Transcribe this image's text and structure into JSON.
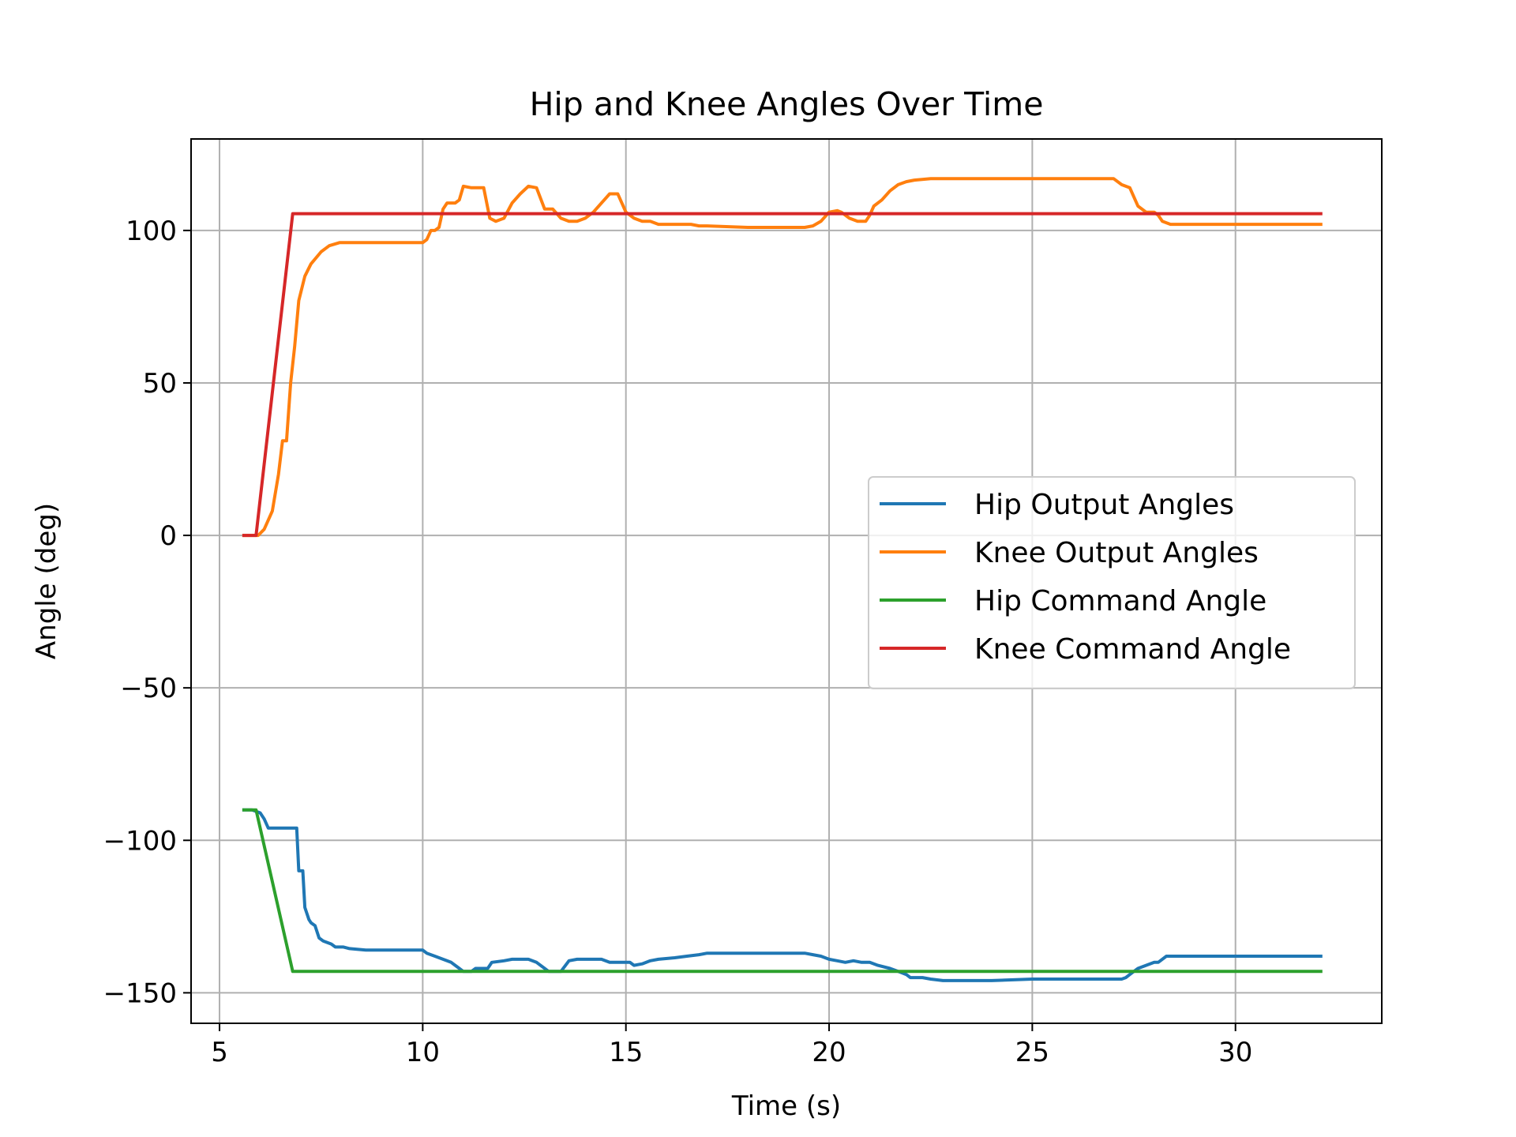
{
  "chart_data": {
    "type": "line",
    "title": "Hip and Knee Angles Over Time",
    "xlabel": "Time (s)",
    "ylabel": "Angle (deg)",
    "xlim": [
      4.3,
      33.6
    ],
    "ylim": [
      -160,
      130
    ],
    "xticks": [
      5,
      10,
      15,
      20,
      25,
      30
    ],
    "yticks": [
      -150,
      -100,
      -50,
      0,
      50,
      100
    ],
    "xtick_labels": [
      "5",
      "10",
      "15",
      "20",
      "25",
      "30"
    ],
    "ytick_labels": [
      "−150",
      "−100",
      "−50",
      "0",
      "50",
      "100"
    ],
    "grid": true,
    "legend_position": "center-right",
    "series": [
      {
        "name": "Hip Output Angles",
        "color": "#1f77b4",
        "x": [
          5.6,
          5.8,
          6.0,
          6.1,
          6.2,
          6.4,
          6.5,
          6.7,
          6.9,
          6.95,
          7.05,
          7.1,
          7.2,
          7.25,
          7.35,
          7.45,
          7.55,
          7.75,
          7.85,
          8.05,
          8.2,
          8.6,
          9.0,
          9.5,
          10.0,
          10.1,
          10.3,
          10.5,
          10.7,
          10.8,
          10.9,
          11.0,
          11.2,
          11.3,
          11.5,
          11.6,
          11.7,
          12.0,
          12.2,
          12.5,
          12.6,
          12.8,
          13.0,
          13.1,
          13.2,
          13.3,
          13.4,
          13.6,
          13.8,
          14.0,
          14.2,
          14.4,
          14.6,
          14.8,
          15.0,
          15.1,
          15.2,
          15.4,
          15.6,
          15.8,
          16.2,
          16.5,
          16.8,
          17.0,
          18.0,
          19.0,
          19.4,
          19.6,
          19.8,
          20.0,
          20.2,
          20.4,
          20.6,
          20.8,
          21.0,
          21.2,
          21.5,
          21.7,
          21.9,
          22.0,
          22.1,
          22.3,
          22.5,
          22.8,
          23.0,
          24.0,
          25.0,
          26.0,
          27.0,
          27.2,
          27.3,
          27.4,
          27.5,
          27.6,
          27.8,
          28.0,
          28.1,
          28.3,
          29.0,
          30.0,
          31.0,
          32.1
        ],
        "values": [
          -90,
          -90,
          -91,
          -93,
          -96,
          -96,
          -96,
          -96,
          -96,
          -110,
          -110,
          -122,
          -126,
          -127,
          -128,
          -132,
          -133,
          -134,
          -135,
          -135,
          -135.5,
          -136,
          -136,
          -136,
          -136,
          -137,
          -138,
          -139,
          -140,
          -141,
          -142,
          -143,
          -143,
          -142,
          -142,
          -142,
          -140,
          -139.5,
          -139,
          -139,
          -139,
          -140,
          -142,
          -143,
          -143,
          -143,
          -143,
          -139.5,
          -139,
          -139,
          -139,
          -139,
          -140,
          -140,
          -140,
          -140,
          -141,
          -140.5,
          -139.5,
          -139,
          -138.5,
          -138,
          -137.5,
          -137,
          -137,
          -137,
          -137,
          -137.5,
          -138,
          -139,
          -139.5,
          -140,
          -139.5,
          -140,
          -140,
          -141,
          -142,
          -143,
          -144,
          -145,
          -145,
          -145,
          -145.5,
          -146,
          -146,
          -146,
          -145.5,
          -145.5,
          -145.5,
          -145.5,
          -145,
          -144,
          -143,
          -142,
          -141,
          -140,
          -140,
          -138,
          -138,
          -138,
          -138,
          -138
        ]
      },
      {
        "name": "Knee Output Angles",
        "color": "#ff7f0e",
        "x": [
          5.6,
          5.8,
          5.95,
          6.1,
          6.3,
          6.45,
          6.55,
          6.65,
          6.75,
          6.85,
          6.95,
          7.1,
          7.25,
          7.5,
          7.7,
          7.95,
          8.3,
          8.6,
          9.0,
          9.5,
          10.0,
          10.1,
          10.2,
          10.3,
          10.4,
          10.5,
          10.6,
          10.8,
          10.9,
          11.0,
          11.2,
          11.5,
          11.65,
          11.8,
          12.0,
          12.2,
          12.4,
          12.6,
          12.8,
          13.0,
          13.2,
          13.4,
          13.6,
          13.8,
          14.0,
          14.2,
          14.4,
          14.6,
          14.8,
          15.0,
          15.2,
          15.4,
          15.6,
          15.8,
          16.2,
          16.6,
          16.8,
          17.0,
          18.0,
          19.0,
          19.4,
          19.6,
          19.8,
          20.0,
          20.2,
          20.3,
          20.5,
          20.7,
          20.9,
          21.0,
          21.1,
          21.3,
          21.5,
          21.7,
          21.9,
          22.1,
          22.5,
          23.0,
          24.0,
          25.0,
          26.0,
          27.0,
          27.2,
          27.4,
          27.6,
          27.8,
          28.0,
          28.1,
          28.2,
          28.4,
          28.7,
          29.0,
          30.0,
          31.0,
          32.1
        ],
        "values": [
          0,
          0,
          0,
          2,
          8,
          20,
          31,
          31,
          50,
          62,
          77,
          85,
          89,
          93,
          95,
          96,
          96,
          96,
          96,
          96,
          96,
          97,
          100,
          100,
          101,
          107,
          109,
          109,
          110,
          114.5,
          114,
          114,
          104,
          103,
          104,
          109,
          112,
          114.5,
          114,
          107,
          107,
          104,
          103,
          103,
          104,
          106,
          109,
          112,
          112,
          106,
          104,
          103,
          103,
          102,
          102,
          102,
          101.5,
          101.5,
          101,
          101,
          101,
          101.5,
          103,
          106,
          106.5,
          106,
          104,
          103,
          103,
          105,
          108,
          110,
          113,
          115,
          116,
          116.5,
          117,
          117,
          117,
          117,
          117,
          117,
          115,
          114,
          108,
          106,
          106,
          105,
          103,
          102,
          102,
          102,
          102,
          102,
          102
        ]
      },
      {
        "name": "Hip Command Angle",
        "color": "#2ca02c",
        "x": [
          5.6,
          5.9,
          6.8,
          32.1
        ],
        "values": [
          -90,
          -90,
          -143,
          -143
        ]
      },
      {
        "name": "Knee Command Angle",
        "color": "#d62728",
        "x": [
          5.6,
          5.9,
          6.8,
          32.1
        ],
        "values": [
          0,
          0,
          105.5,
          105.5
        ]
      }
    ]
  }
}
